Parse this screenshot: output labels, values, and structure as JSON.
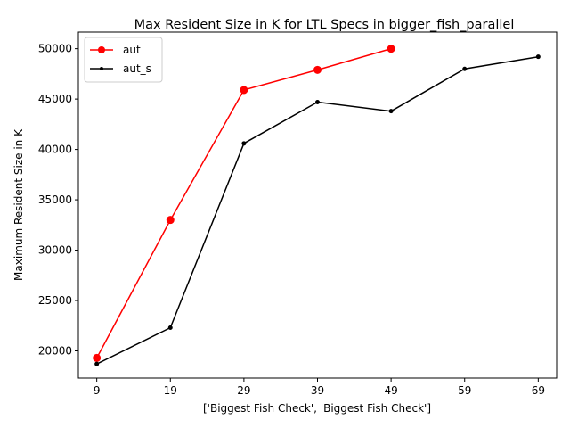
{
  "chart_data": {
    "type": "line",
    "title": "Max Resident Size in K for LTL Specs in bigger_fish_parallel",
    "xlabel": "['Biggest Fish Check', 'Biggest Fish Check']",
    "ylabel": "Maximum Resident Size in K",
    "x": [
      9,
      19,
      29,
      39,
      49,
      59,
      69
    ],
    "xticks": [
      "9",
      "19",
      "29",
      "39",
      "49",
      "59",
      "69"
    ],
    "yticks": [
      20000,
      25000,
      30000,
      35000,
      40000,
      45000,
      50000
    ],
    "xlim": [
      6.5,
      71.5
    ],
    "ylim": [
      17300,
      51650
    ],
    "grid": false,
    "legend_position": "top-left",
    "series": [
      {
        "name": "aut",
        "color": "#ff0000",
        "marker": "large-dot",
        "x": [
          9,
          19,
          29,
          39,
          49
        ],
        "values": [
          19300,
          33000,
          45900,
          47900,
          50000
        ]
      },
      {
        "name": "aut_s",
        "color": "#000000",
        "marker": "small-dot",
        "x": [
          9,
          19,
          29,
          39,
          49,
          59,
          69
        ],
        "values": [
          18700,
          22300,
          40600,
          44700,
          43800,
          48000,
          49200
        ]
      }
    ]
  }
}
